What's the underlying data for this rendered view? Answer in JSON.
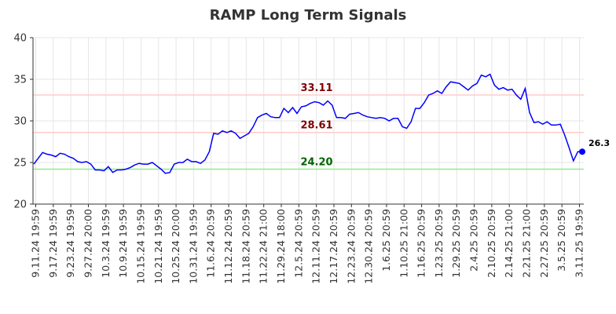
{
  "chart_data": {
    "type": "line",
    "title": "RAMP Long Term Signals",
    "xlabel": "",
    "ylabel": "",
    "ylim": [
      20,
      40
    ],
    "yticks": [
      20,
      25,
      30,
      35,
      40
    ],
    "grid": true,
    "line_color": "#0000ff",
    "x_tick_labels": [
      "9.11.24 19:59",
      "9.17.24 19:59",
      "9.23.24 19:59",
      "9.27.24 20:00",
      "10.3.24 19:59",
      "10.9.24 19:59",
      "10.15.24 19:59",
      "10.21.24 19:59",
      "10.25.24 20:00",
      "10.31.24 19:59",
      "11.6.24 20:59",
      "11.12.24 20:59",
      "11.18.24 20:59",
      "11.22.24 21:00",
      "11.29.24 18:00",
      "12.5.24 20:59",
      "12.11.24 20:59",
      "12.17.24 20:59",
      "12.23.24 20:59",
      "12.30.24 20:59",
      "1.6.25 20:59",
      "1.10.25 21:00",
      "1.16.25 20:59",
      "1.23.25 20:59",
      "1.29.25 20:59",
      "2.4.25 20:59",
      "2.10.25 20:59",
      "2.14.25 21:00",
      "2.21.25 21:00",
      "2.27.25 20:59",
      "3.5.25 20:59",
      "3.11.25 19:59"
    ],
    "signals": [
      {
        "label": "33.11",
        "value": 33.11,
        "line_color": "#ffcccc",
        "text_color": "#800000"
      },
      {
        "label": "28.61",
        "value": 28.61,
        "line_color": "#ffcccc",
        "text_color": "#800000"
      },
      {
        "label": "24.20",
        "value": 24.2,
        "line_color": "#90ee90",
        "text_color": "#006400"
      }
    ],
    "last_value_label": "26.3",
    "series": [
      {
        "values": [
          24.8,
          25.5,
          26.2,
          26.0,
          25.9,
          25.7,
          26.1,
          26.0,
          25.7,
          25.5,
          25.1,
          25.0,
          25.1,
          24.8,
          24.1,
          24.1,
          24.0,
          24.5,
          23.8,
          24.1,
          24.1,
          24.2,
          24.4,
          24.7,
          24.9,
          24.8,
          24.8,
          25.0,
          24.6,
          24.2,
          23.7,
          23.8,
          24.8,
          25.0,
          25.0,
          25.4,
          25.1,
          25.1,
          24.9,
          25.3,
          26.3,
          28.5,
          28.4,
          28.8,
          28.6,
          28.8,
          28.5,
          27.9,
          28.2,
          28.5,
          29.3,
          30.4,
          30.7,
          30.9,
          30.5,
          30.4,
          30.4,
          31.5,
          31.0,
          31.6,
          30.9,
          31.7,
          31.8,
          32.1,
          32.3,
          32.2,
          31.9,
          32.4,
          31.9,
          30.4,
          30.4,
          30.3,
          30.8,
          30.9,
          31.0,
          30.7,
          30.5,
          30.4,
          30.3,
          30.4,
          30.3,
          30.0,
          30.3,
          30.3,
          29.3,
          29.1,
          29.9,
          31.5,
          31.5,
          32.2,
          33.1,
          33.3,
          33.6,
          33.3,
          34.1,
          34.7,
          34.6,
          34.5,
          34.1,
          33.7,
          34.2,
          34.5,
          35.5,
          35.3,
          35.6,
          34.3,
          33.8,
          34.0,
          33.7,
          33.8,
          33.1,
          32.6,
          33.9,
          31.0,
          29.8,
          29.9,
          29.6,
          29.9,
          29.5,
          29.5,
          29.6,
          28.3,
          26.8,
          25.2,
          26.3,
          26.3
        ]
      }
    ]
  }
}
